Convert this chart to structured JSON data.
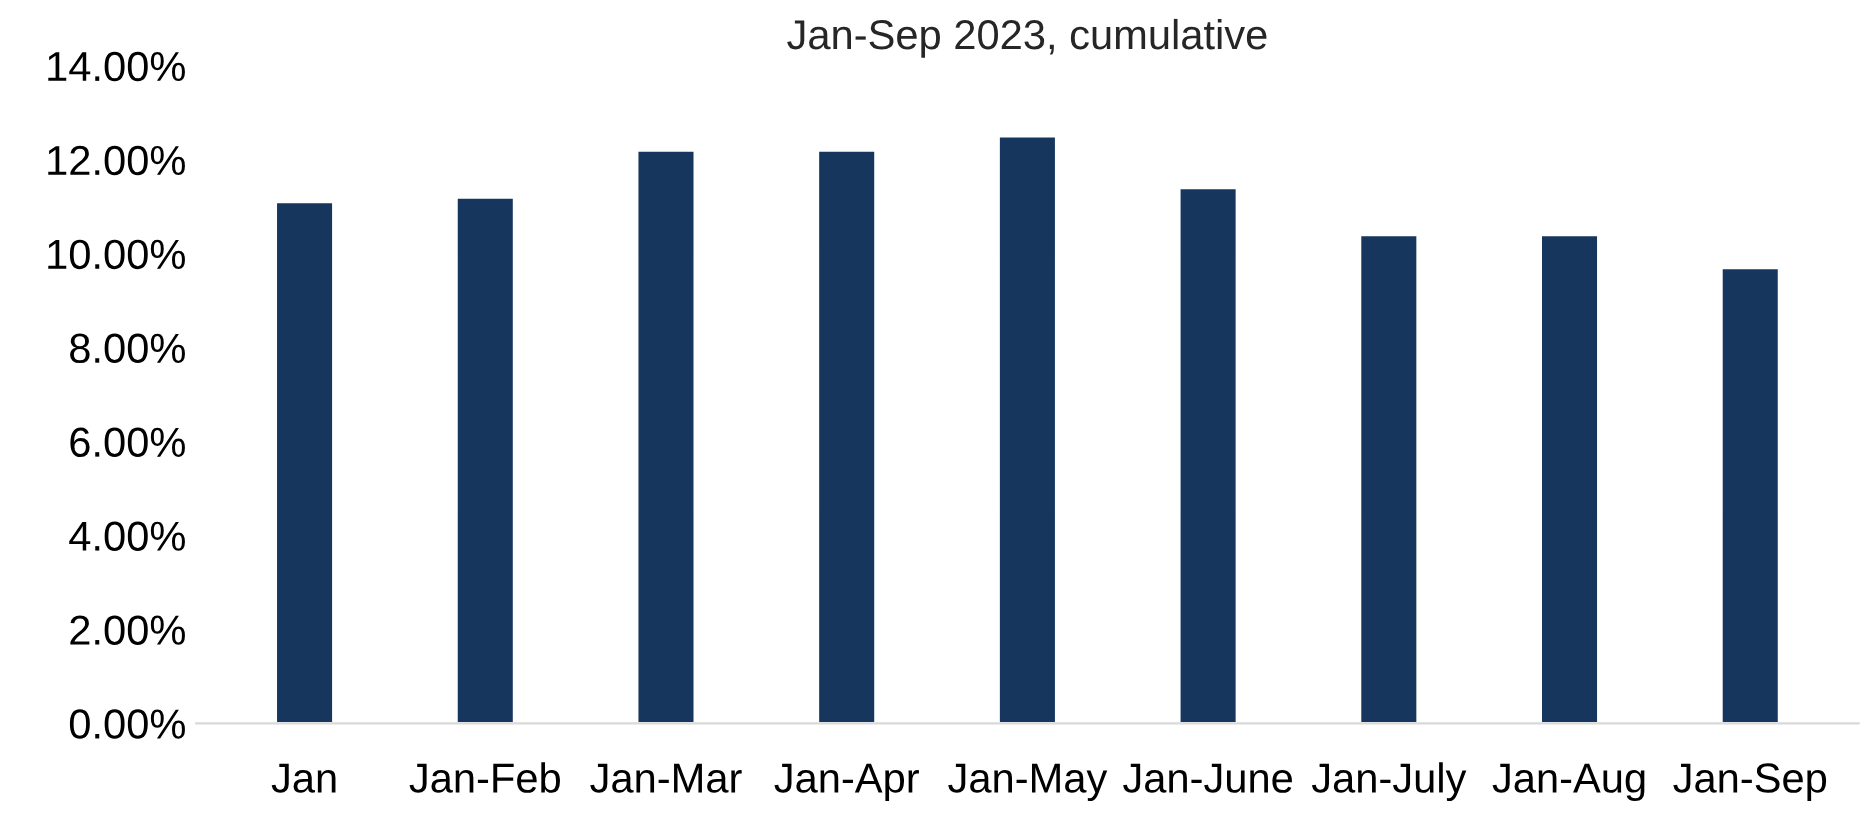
{
  "chart_data": {
    "type": "bar",
    "title": "Jan-Sep 2023, cumulative",
    "categories": [
      "Jan",
      "Jan-Feb",
      "Jan-Mar",
      "Jan-Apr",
      "Jan-May",
      "Jan-June",
      "Jan-July",
      "Jan-Aug",
      "Jan-Sep"
    ],
    "values": [
      11.1,
      11.2,
      12.2,
      12.2,
      12.5,
      11.4,
      10.4,
      10.4,
      9.7
    ],
    "color": "#17365d",
    "ylim": [
      0,
      14
    ],
    "yticks": [
      {
        "value": 0,
        "label": "0.00%"
      },
      {
        "value": 2,
        "label": "2.00%"
      },
      {
        "value": 4,
        "label": "4.00%"
      },
      {
        "value": 6,
        "label": "6.00%"
      },
      {
        "value": 8,
        "label": "8.00%"
      },
      {
        "value": 10,
        "label": "10.00%"
      },
      {
        "value": 12,
        "label": "12.00%"
      },
      {
        "value": 14,
        "label": "14.00%"
      }
    ],
    "grid": false
  }
}
